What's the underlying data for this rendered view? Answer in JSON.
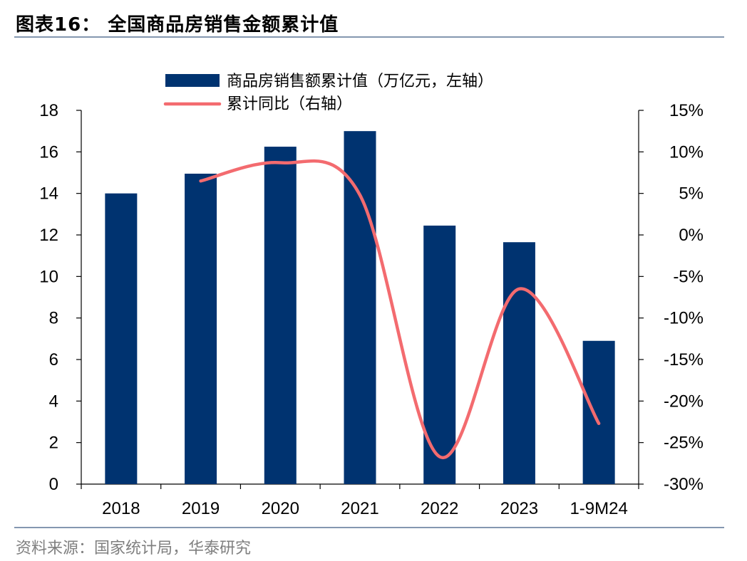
{
  "page": {
    "title": "图表16：  全国商品房销售金额累计值",
    "source": "资料来源：国家统计局，华泰研究"
  },
  "chart_data": {
    "type": "bar",
    "categories": [
      "2018",
      "2019",
      "2020",
      "2021",
      "2022",
      "2023",
      "1-9M24"
    ],
    "series": [
      {
        "name": "商品房销售额累计值（万亿元，左轴）",
        "kind": "bar",
        "axis": "left",
        "color": "#003370",
        "values": [
          14.0,
          14.95,
          16.25,
          17.0,
          12.45,
          11.65,
          6.9
        ]
      },
      {
        "name": "累计同比（右轴）",
        "kind": "line",
        "axis": "right",
        "color": "#f36b6f",
        "values": [
          null,
          6.5,
          8.7,
          4.8,
          -26.7,
          -6.5,
          -22.7
        ]
      }
    ],
    "ylim_left": [
      0,
      18
    ],
    "yticks_left": [
      "0",
      "2",
      "4",
      "6",
      "8",
      "10",
      "12",
      "14",
      "16",
      "18"
    ],
    "ylim_right": [
      -30,
      15
    ],
    "yticks_right": [
      "-30%",
      "-25%",
      "-20%",
      "-15%",
      "-10%",
      "-5%",
      "0%",
      "5%",
      "10%",
      "15%"
    ],
    "grid": false,
    "legend_position": "top-center"
  }
}
